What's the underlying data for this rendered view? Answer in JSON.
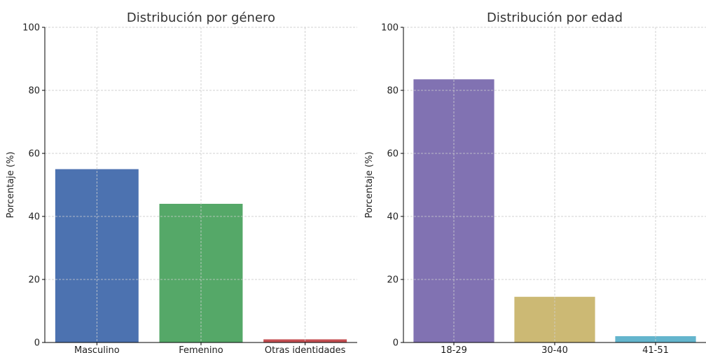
{
  "chart_data": [
    {
      "type": "bar",
      "title": "Distribución por género",
      "ylabel": "Porcentaje (%)",
      "xlabel": "",
      "ylim": [
        0,
        100
      ],
      "yticks": [
        "0",
        "20",
        "40",
        "60",
        "80",
        "100"
      ],
      "grid": true,
      "categories": [
        "Masculino",
        "Femenino",
        "Otras identidades"
      ],
      "values": [
        55,
        44,
        1
      ],
      "colors": [
        "#4c72b0",
        "#55a868",
        "#c44e52"
      ]
    },
    {
      "type": "bar",
      "title": "Distribución por edad",
      "ylabel": "Porcentaje (%)",
      "xlabel": "",
      "ylim": [
        0,
        100
      ],
      "yticks": [
        "0",
        "20",
        "40",
        "60",
        "80",
        "100"
      ],
      "grid": true,
      "categories": [
        "18-29",
        "30-40",
        "41-51"
      ],
      "values": [
        83.5,
        14.5,
        2
      ],
      "colors": [
        "#8172b2",
        "#ccb974",
        "#64b5cd"
      ]
    }
  ]
}
